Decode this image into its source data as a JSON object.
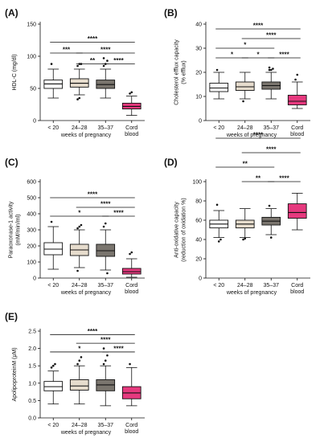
{
  "colors": {
    "lt20": "#ffffff",
    "w24_28": "#e6dccd",
    "w35_37": "#7a756e",
    "cord": "#e6397e",
    "line": "#111111"
  },
  "chart_data": [
    {
      "type": "box",
      "panel": "(A)",
      "categories": [
        "< 20",
        "24–28",
        "35–37",
        [
          "Cord",
          "blood"
        ]
      ],
      "xlabel": "weeks of pregnancy",
      "ylabel": "HDL-C (mg/dl)",
      "ylim": [
        0,
        150
      ],
      "yticks": [
        0,
        50,
        100,
        150
      ],
      "boxes": [
        {
          "min": 35,
          "q1": 50,
          "median": 57,
          "q3": 63,
          "max": 80,
          "outliers": [
            88
          ]
        },
        {
          "min": 40,
          "q1": 52,
          "median": 58,
          "q3": 65,
          "max": 80,
          "outliers": [
            85,
            88,
            88,
            33,
            35
          ]
        },
        {
          "min": 35,
          "q1": 50,
          "median": 56,
          "q3": 63,
          "max": 80,
          "outliers": [
            85,
            88,
            93,
            97
          ]
        },
        {
          "min": 8,
          "q1": 18,
          "median": 22,
          "q3": 27,
          "max": 38,
          "outliers": [
            42,
            44
          ]
        }
      ],
      "significance": [
        {
          "from": 0,
          "to": 3,
          "label": "****",
          "y": 122
        },
        {
          "from": 0,
          "to": 1,
          "label": "***",
          "y": 105
        },
        {
          "from": 1,
          "to": 3,
          "label": "****",
          "y": 105
        },
        {
          "from": 1,
          "to": 2,
          "label": "**",
          "y": 88
        },
        {
          "from": 2,
          "to": 3,
          "label": "****",
          "y": 88
        }
      ]
    },
    {
      "type": "box",
      "panel": "(B)",
      "categories": [
        "< 20",
        "24–28",
        "35–37",
        [
          "Cord",
          "blood"
        ]
      ],
      "xlabel": "weeks of pregnancy",
      "ylabel": [
        "Cholesterol efflux capacity",
        "(% efflux)"
      ],
      "ylim": [
        0,
        40
      ],
      "yticks": [
        0,
        10,
        20,
        30,
        40
      ],
      "boxes": [
        {
          "min": 9,
          "q1": 12,
          "median": 13.5,
          "q3": 15.5,
          "max": 20,
          "outliers": [
            21
          ]
        },
        {
          "min": 9,
          "q1": 12.5,
          "median": 14,
          "q3": 16,
          "max": 20,
          "outliers": [
            8
          ]
        },
        {
          "min": 9,
          "q1": 13,
          "median": 14.5,
          "q3": 16,
          "max": 20,
          "outliers": [
            21,
            21,
            21.5,
            22
          ]
        },
        {
          "min": 5,
          "q1": 6.5,
          "median": 8,
          "q3": 10.5,
          "max": 16,
          "outliers": [
            17,
            19
          ]
        }
      ],
      "significance": [
        {
          "from": 0,
          "to": 3,
          "label": "****",
          "y": 38
        },
        {
          "from": 1,
          "to": 3,
          "label": "****",
          "y": 34
        },
        {
          "from": 0,
          "to": 2,
          "label": "*",
          "y": 30
        },
        {
          "from": 0,
          "to": 1,
          "label": "*",
          "y": 26
        },
        {
          "from": 1,
          "to": 2,
          "label": "*",
          "y": 26
        },
        {
          "from": 2,
          "to": 3,
          "label": "****",
          "y": 26
        }
      ]
    },
    {
      "type": "box",
      "panel": "(C)",
      "categories": [
        "< 20",
        "24–28",
        "35–37",
        [
          "Cord",
          "blood"
        ]
      ],
      "xlabel": "weeks of pregnancy",
      "ylabel": [
        "Paraoxonase-1 activity",
        "(mM/min/ml)"
      ],
      "ylim": [
        0,
        600
      ],
      "yticks": [
        0,
        100,
        200,
        300,
        400,
        500,
        600
      ],
      "boxes": [
        {
          "min": 55,
          "q1": 145,
          "median": 180,
          "q3": 220,
          "max": 320,
          "outliers": [
            350
          ]
        },
        {
          "min": 65,
          "q1": 140,
          "median": 175,
          "q3": 210,
          "max": 300,
          "outliers": [
            310,
            320,
            330,
            45
          ]
        },
        {
          "min": 50,
          "q1": 135,
          "median": 170,
          "q3": 210,
          "max": 300,
          "outliers": [
            320,
            340,
            30
          ]
        },
        {
          "min": 5,
          "q1": 25,
          "median": 40,
          "q3": 60,
          "max": 120,
          "outliers": [
            150,
            160
          ]
        }
      ],
      "significance": [
        {
          "from": 0,
          "to": 3,
          "label": "****",
          "y": 500
        },
        {
          "from": 1,
          "to": 3,
          "label": "****",
          "y": 440
        },
        {
          "from": 0,
          "to": 2,
          "label": "*",
          "y": 385
        },
        {
          "from": 2,
          "to": 3,
          "label": "****",
          "y": 385
        }
      ]
    },
    {
      "type": "box",
      "panel": "(D)",
      "categories": [
        "< 20",
        "24–28",
        "35–37",
        [
          "Cord",
          "blood"
        ]
      ],
      "xlabel": "weeks of pregnancy",
      "ylabel": [
        "Anti-oxidative capacity",
        "(reduction of oxidation %)"
      ],
      "ylim": [
        0,
        100
      ],
      "yticks": [
        0,
        20,
        40,
        60,
        80,
        100
      ],
      "boxes": [
        {
          "min": 42,
          "q1": 52,
          "median": 56,
          "q3": 60,
          "max": 70,
          "outliers": [
            76,
            38,
            40
          ]
        },
        {
          "min": 42,
          "q1": 52,
          "median": 56,
          "q3": 60,
          "max": 72,
          "outliers": [
            40,
            41
          ]
        },
        {
          "min": 45,
          "q1": 55,
          "median": 59,
          "q3": 63,
          "max": 72,
          "outliers": [
            75,
            42
          ]
        },
        {
          "min": 50,
          "q1": 62,
          "median": 68,
          "q3": 77,
          "max": 88,
          "outliers": []
        }
      ],
      "significance": [
        {
          "from": 0,
          "to": 3,
          "label": "****",
          "y": 145
        },
        {
          "from": 1,
          "to": 3,
          "label": "****",
          "y": 130
        },
        {
          "from": 0,
          "to": 2,
          "label": "**",
          "y": 115
        },
        {
          "from": 1,
          "to": 2,
          "label": "**",
          "y": 100
        },
        {
          "from": 2,
          "to": 3,
          "label": "****",
          "y": 100
        }
      ]
    },
    {
      "type": "box",
      "panel": "(E)",
      "categories": [
        "< 20",
        "24–28",
        "35–37",
        [
          "Cord",
          "blood"
        ]
      ],
      "xlabel": "weeks of pregnancy",
      "ylabel": "ApolipoproteinM (μM)",
      "ylim": [
        0,
        2.5
      ],
      "yticks": [
        0.0,
        0.5,
        1.0,
        1.5,
        2.0,
        2.5
      ],
      "ytick_labels": [
        "0.0",
        "0.5",
        "1.0",
        "1.5",
        "2.0",
        "2.5"
      ],
      "boxes": [
        {
          "min": 0.4,
          "q1": 0.78,
          "median": 0.9,
          "q3": 1.05,
          "max": 1.35,
          "outliers": [
            1.45,
            1.5,
            1.55
          ]
        },
        {
          "min": 0.4,
          "q1": 0.8,
          "median": 0.92,
          "q3": 1.1,
          "max": 1.5,
          "outliers": [
            1.55,
            1.65,
            1.75
          ]
        },
        {
          "min": 0.35,
          "q1": 0.78,
          "median": 0.95,
          "q3": 1.1,
          "max": 1.5,
          "outliers": [
            1.55,
            1.65,
            1.8,
            2.0
          ]
        },
        {
          "min": 0.35,
          "q1": 0.55,
          "median": 0.72,
          "q3": 0.9,
          "max": 1.45,
          "outliers": [
            1.55
          ]
        }
      ],
      "significance": [
        {
          "from": 0,
          "to": 3,
          "label": "****",
          "y": 2.4
        },
        {
          "from": 1,
          "to": 3,
          "label": "****",
          "y": 2.15
        },
        {
          "from": 0,
          "to": 2,
          "label": "*",
          "y": 1.9
        },
        {
          "from": 2,
          "to": 3,
          "label": "****",
          "y": 1.9
        }
      ]
    }
  ]
}
